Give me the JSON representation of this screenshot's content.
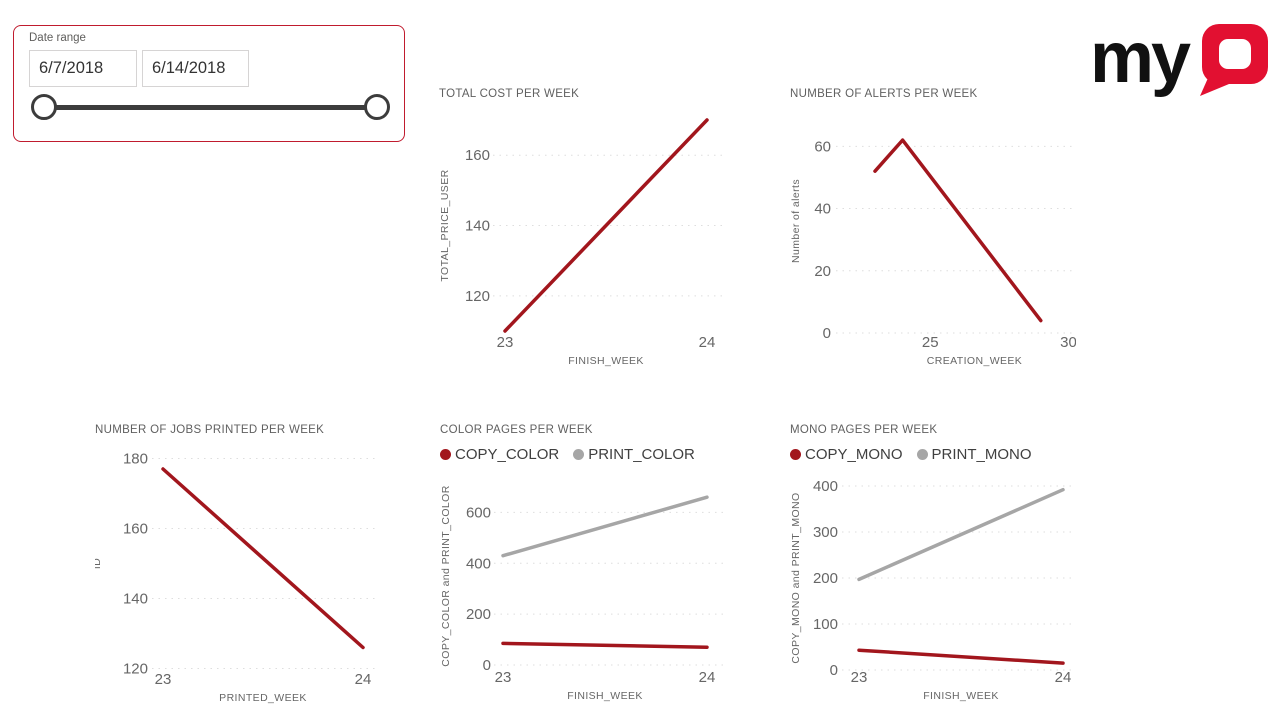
{
  "logo": {
    "my": "my",
    "q": "Q",
    "red": "#E21031",
    "black": "#111111"
  },
  "colors": {
    "series_red": "#A2161D",
    "series_gray": "#A6A6A6",
    "grid": "#DEDEDE",
    "slicer_border": "#C01B2E",
    "slider": "#3C3C3C",
    "tick_text": "#666666",
    "title_text": "#606060",
    "legend_text": "#3F3F3F"
  },
  "slicer": {
    "label": "Date range",
    "start_date": "6/7/2018",
    "end_date": "6/14/2018"
  },
  "chart_data": [
    {
      "id": "total-cost-per-week",
      "type": "line",
      "title": "TOTAL COST PER WEEK",
      "xlabel": "FINISH_WEEK",
      "ylabel": "TOTAL_PRICE_USER",
      "xlim": [
        23,
        24
      ],
      "ylim": [
        108,
        172
      ],
      "x_ticks": [
        23,
        24
      ],
      "y_ticks": [
        120,
        140,
        160
      ],
      "grid": "horizontal-dotted",
      "legend_position": "none",
      "series": [
        {
          "name": "TOTAL_PRICE_USER",
          "color": "#A2161D",
          "points": [
            [
              23,
              110
            ],
            [
              24,
              170
            ]
          ]
        }
      ]
    },
    {
      "id": "number-of-alerts-per-week",
      "type": "line",
      "title": "NUMBER OF ALERTS PER WEEK",
      "xlabel": "CREATION_WEEK",
      "ylabel": "Number of alerts",
      "xlim": [
        23,
        30.2
      ],
      "ylim": [
        0,
        72
      ],
      "x_ticks": [
        25,
        30
      ],
      "y_ticks": [
        0,
        20,
        40,
        60
      ],
      "grid": "horizontal-dotted",
      "legend_position": "none",
      "series": [
        {
          "name": "Number of alerts",
          "color": "#A2161D",
          "points": [
            [
              23,
              52
            ],
            [
              24,
              62
            ],
            [
              29,
              4
            ]
          ]
        }
      ]
    },
    {
      "id": "number-of-jobs-printed-per-week",
      "type": "line",
      "title": "NUMBER OF JOBS PRINTED PER WEEK",
      "xlabel": "PRINTED_WEEK",
      "ylabel": "ID",
      "xlim": [
        23,
        24
      ],
      "ylim": [
        119,
        181
      ],
      "x_ticks": [
        23,
        24
      ],
      "y_ticks": [
        120,
        140,
        160,
        180
      ],
      "grid": "horizontal-dotted",
      "legend_position": "none",
      "series": [
        {
          "name": "ID",
          "color": "#A2161D",
          "points": [
            [
              23,
              177
            ],
            [
              24,
              126
            ]
          ]
        }
      ]
    },
    {
      "id": "color-pages-per-week",
      "type": "line",
      "title": "COLOR PAGES PER WEEK",
      "xlabel": "FINISH_WEEK",
      "ylabel": "COPY_COLOR and PRINT_COLOR",
      "xlim": [
        23,
        24
      ],
      "ylim": [
        0,
        700
      ],
      "x_ticks": [
        23,
        24
      ],
      "y_ticks": [
        0,
        200,
        400,
        600
      ],
      "grid": "horizontal-dotted",
      "legend_position": "top",
      "series": [
        {
          "name": "COPY_COLOR",
          "color": "#A2161D",
          "points": [
            [
              23,
              85
            ],
            [
              24,
              70
            ]
          ]
        },
        {
          "name": "PRINT_COLOR",
          "color": "#A6A6A6",
          "points": [
            [
              23,
              430
            ],
            [
              24,
              660
            ]
          ]
        }
      ]
    },
    {
      "id": "mono-pages-per-week",
      "type": "line",
      "title": "MONO PAGES PER WEEK",
      "xlabel": "FINISH_WEEK",
      "ylabel": "COPY_MONO and PRINT_MONO",
      "xlim": [
        23,
        24
      ],
      "ylim": [
        0,
        400
      ],
      "x_ticks": [
        23,
        24
      ],
      "y_ticks": [
        0,
        100,
        200,
        300,
        400
      ],
      "grid": "horizontal-dotted",
      "legend_position": "top",
      "series": [
        {
          "name": "COPY_MONO",
          "color": "#A2161D",
          "points": [
            [
              23,
              43
            ],
            [
              24,
              15
            ]
          ]
        },
        {
          "name": "PRINT_MONO",
          "color": "#A6A6A6",
          "points": [
            [
              23,
              197
            ],
            [
              24,
              392
            ]
          ]
        }
      ]
    }
  ]
}
